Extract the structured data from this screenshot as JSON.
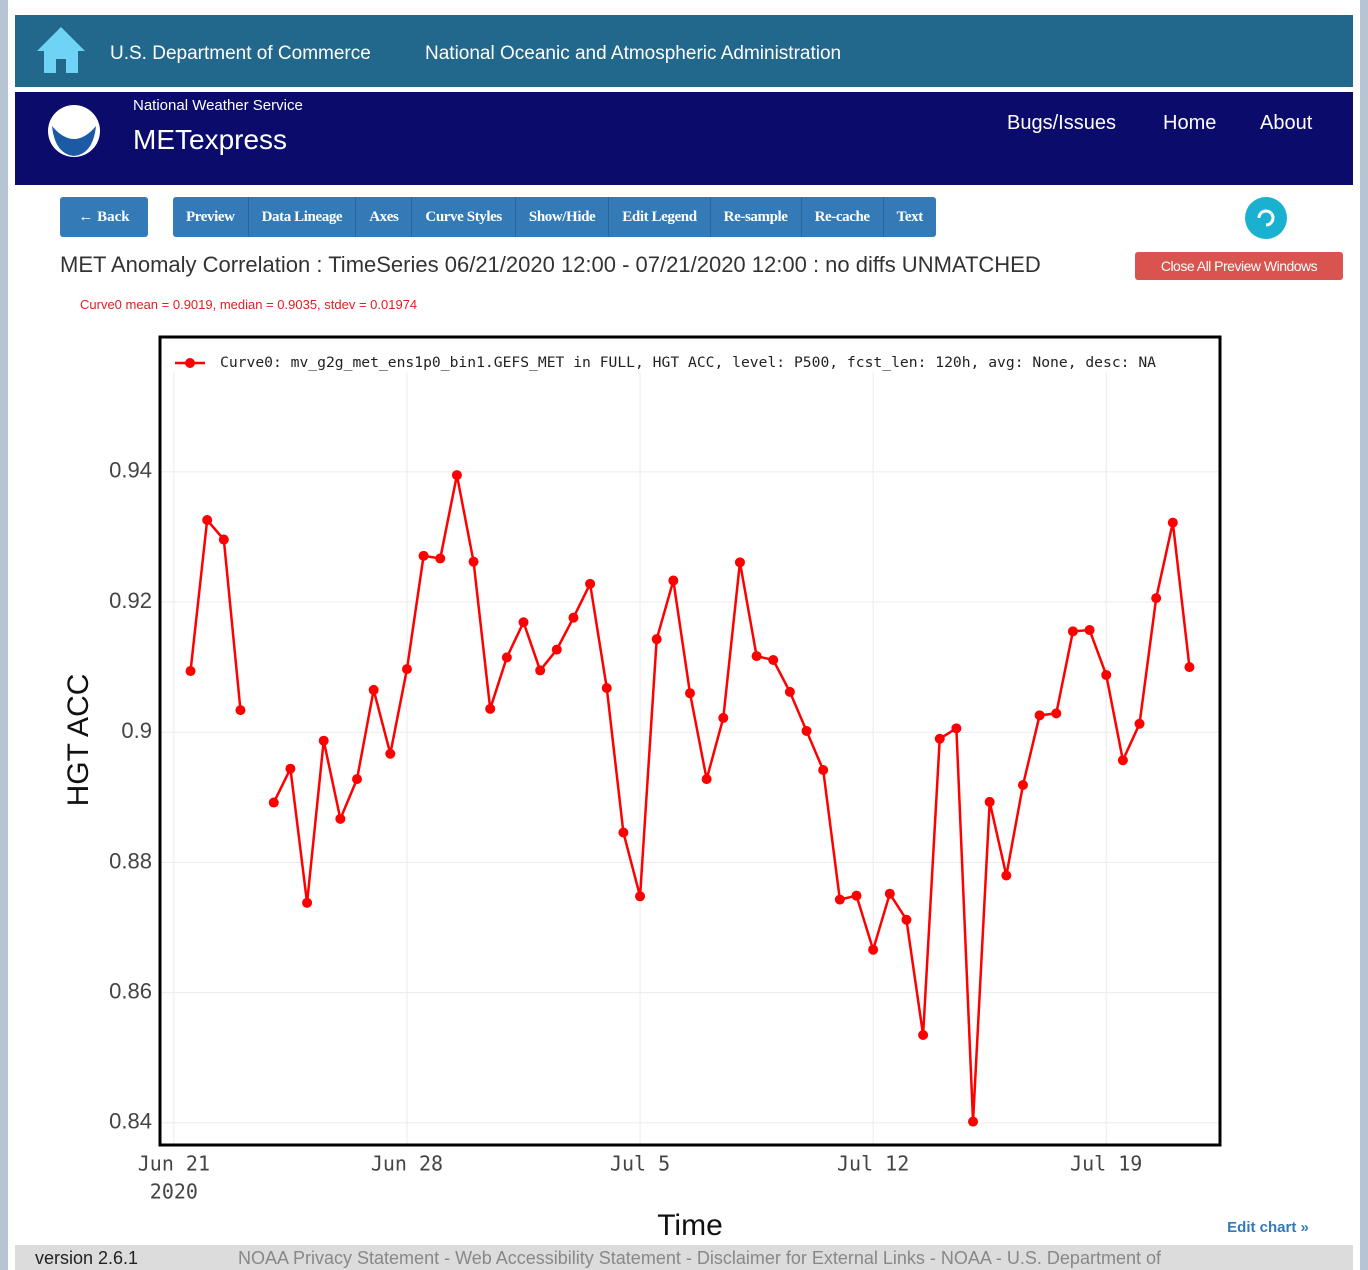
{
  "header": {
    "agency": "U.S. Department of Commerce",
    "org": "National Oceanic and Atmospheric Administration"
  },
  "brand": {
    "service": "National Weather Service",
    "app": "METexpress",
    "links": [
      "Bugs/Issues",
      "Home",
      "About"
    ]
  },
  "toolbar": {
    "back": "← Back",
    "buttons": [
      "Preview",
      "Data Lineage",
      "Axes",
      "Curve Styles",
      "Show/Hide",
      "Edit Legend",
      "Re-sample",
      "Re-cache",
      "Text"
    ]
  },
  "plot_title": "MET Anomaly Correlation : TimeSeries 06/21/2020 12:00 - 07/21/2020 12:00 : no diffs UNMATCHED",
  "close_button": "Close All Preview Windows",
  "stats": "Curve0 mean = 0.9019, median = 0.9035, stdev = 0.01974",
  "chart_data": {
    "type": "line",
    "y_label": "HGT ACC",
    "x_label": "Time",
    "legend": "upper left",
    "grid": true,
    "x": [
      "2020-06-21 12:00",
      "2020-06-22 00:00",
      "2020-06-22 12:00",
      "2020-06-23 00:00",
      "2020-06-23 12:00",
      "2020-06-24 00:00",
      "2020-06-24 12:00",
      "2020-06-25 00:00",
      "2020-06-25 12:00",
      "2020-06-26 00:00",
      "2020-06-26 12:00",
      "2020-06-27 00:00",
      "2020-06-27 12:00",
      "2020-06-28 00:00",
      "2020-06-28 12:00",
      "2020-06-29 00:00",
      "2020-06-29 12:00",
      "2020-06-30 00:00",
      "2020-06-30 12:00",
      "2020-07-01 00:00",
      "2020-07-01 12:00",
      "2020-07-02 00:00",
      "2020-07-02 12:00",
      "2020-07-03 00:00",
      "2020-07-03 12:00",
      "2020-07-04 00:00",
      "2020-07-04 12:00",
      "2020-07-05 00:00",
      "2020-07-05 12:00",
      "2020-07-06 00:00",
      "2020-07-06 12:00",
      "2020-07-07 00:00",
      "2020-07-07 12:00",
      "2020-07-08 00:00",
      "2020-07-08 12:00",
      "2020-07-09 00:00",
      "2020-07-09 12:00",
      "2020-07-10 00:00",
      "2020-07-10 12:00",
      "2020-07-11 00:00",
      "2020-07-11 12:00",
      "2020-07-12 00:00",
      "2020-07-12 12:00",
      "2020-07-13 00:00",
      "2020-07-13 12:00",
      "2020-07-14 00:00",
      "2020-07-14 12:00",
      "2020-07-15 00:00",
      "2020-07-15 12:00",
      "2020-07-16 00:00",
      "2020-07-16 12:00",
      "2020-07-17 00:00",
      "2020-07-17 12:00",
      "2020-07-18 00:00",
      "2020-07-18 12:00",
      "2020-07-19 00:00",
      "2020-07-19 12:00",
      "2020-07-20 00:00",
      "2020-07-20 12:00",
      "2020-07-21 00:00",
      "2020-07-21 12:00"
    ],
    "series": [
      {
        "name": "Curve0: mv_g2g_met_ens1p0_bin1.GEFS_MET in FULL, HGT ACC, level: P500, fcst_len: 120h, avg: None, desc: NA",
        "color": "#ff0000",
        "values": [
          0.9094,
          0.9326,
          0.9296,
          0.9034,
          null,
          0.8892,
          0.8944,
          0.8738,
          0.8987,
          0.8867,
          0.8928,
          0.9065,
          0.8967,
          0.9097,
          0.9271,
          0.9267,
          0.9395,
          0.9262,
          0.9036,
          0.9115,
          0.9169,
          0.9095,
          0.9127,
          0.9176,
          0.9228,
          0.9068,
          0.8846,
          0.8748,
          0.9143,
          0.9233,
          0.906,
          0.8928,
          0.9022,
          0.9261,
          0.9117,
          0.9111,
          0.9062,
          0.9002,
          0.8942,
          0.8743,
          0.8749,
          0.8666,
          0.8752,
          0.8712,
          0.8535,
          0.899,
          0.9006,
          0.8402,
          0.8893,
          0.878,
          0.8919,
          0.9026,
          0.9029,
          0.9155,
          0.9157,
          0.9088,
          0.8957,
          0.9013,
          0.9206,
          0.9322,
          0.91
        ]
      }
    ],
    "xlim": [
      "2020-06-20 14:00",
      "2020-07-22 10:00"
    ],
    "xticks": [
      {
        "value": "2020-06-21 00:00",
        "label": "Jun 21"
      },
      {
        "value": "2020-06-28 00:00",
        "label": "Jun 28"
      },
      {
        "value": "2020-07-05 00:00",
        "label": "Jul 5"
      },
      {
        "value": "2020-07-12 00:00",
        "label": "Jul 12"
      },
      {
        "value": "2020-07-19 00:00",
        "label": "Jul 19"
      }
    ],
    "xtick_year": "2020",
    "ylim": [
      0.8366,
      0.9538
    ],
    "yticks": [
      0.84,
      0.86,
      0.88,
      0.9,
      0.92,
      0.94
    ]
  },
  "edit_chart": "Edit chart »",
  "footer": {
    "version": "version 2.6.1",
    "links": "NOAA Privacy Statement - Web Accessibility Statement - Disclaimer for External Links - NOAA - U.S. Department of"
  }
}
